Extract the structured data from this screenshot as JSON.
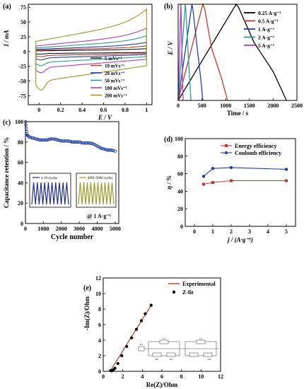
{
  "chart_data": [
    {
      "panel": "(a)",
      "type": "line",
      "xlabel": "E / V",
      "ylabel": "I / mA",
      "xlim": [
        -0.1,
        1.05
      ],
      "ylim": [
        -90,
        80
      ],
      "xticks": [
        "0",
        "0.2",
        "0.4",
        "0.6",
        "0.8",
        "1"
      ],
      "xtick_values": [
        0,
        0.2,
        0.4,
        0.6,
        0.8,
        1
      ],
      "yticks": [
        "75",
        "50",
        "25",
        "0",
        "-25",
        "-50",
        "-75"
      ],
      "ytick_values": [
        75,
        50,
        25,
        0,
        -25,
        -50,
        -75
      ],
      "legend_position": "bottom-right",
      "series": [
        {
          "name": "5 mVs⁻¹",
          "color": "#1a1a1a",
          "amp": 4
        },
        {
          "name": "10 mVs⁻¹",
          "color": "#c0392b",
          "amp": 8
        },
        {
          "name": "20 mVs⁻¹",
          "color": "#1f3fa8",
          "amp": 13
        },
        {
          "name": "50 mVs⁻¹",
          "color": "#2a9a9a",
          "amp": 22
        },
        {
          "name": "100 mVs⁻¹",
          "color": "#b13cc0",
          "amp": 33
        },
        {
          "name": "200 mVs⁻¹",
          "color": "#9a9a2a",
          "amp": 60
        }
      ]
    },
    {
      "panel": "(b)",
      "type": "line",
      "xlabel": "Time / s",
      "ylabel": "E / V",
      "xlim": [
        0,
        2500
      ],
      "ylim": [
        0,
        1
      ],
      "xticks": [
        "0",
        "500",
        "1000",
        "1500",
        "2000",
        "2500"
      ],
      "xtick_values": [
        0,
        500,
        1000,
        1500,
        2000,
        2500
      ],
      "legend_position": "top-right",
      "series": [
        {
          "name": "0.25 A·g⁻¹",
          "color": "#000000",
          "x": [
            0,
            1220,
            1270,
            1600,
            2000,
            2280
          ],
          "y": [
            0,
            1.0,
            0.97,
            0.6,
            0.3,
            0
          ]
        },
        {
          "name": "0.5 A·g⁻¹",
          "color": "#c0392b",
          "x": [
            0,
            520,
            560,
            700,
            900,
            1040
          ],
          "y": [
            0,
            1.0,
            0.95,
            0.55,
            0.25,
            0
          ]
        },
        {
          "name": "1 A·g⁻¹",
          "color": "#1f3fa8",
          "x": [
            0,
            290,
            310,
            400,
            480,
            520
          ],
          "y": [
            0,
            1.0,
            0.95,
            0.55,
            0.2,
            0
          ]
        },
        {
          "name": "2 A·g⁻¹",
          "color": "#2a9a9a",
          "x": [
            0,
            150,
            160,
            210,
            250,
            270
          ],
          "y": [
            0,
            1.0,
            0.95,
            0.5,
            0.15,
            0
          ]
        },
        {
          "name": "5 A·g⁻¹",
          "color": "#b13cc0",
          "x": [
            0,
            55,
            60,
            80,
            95,
            105
          ],
          "y": [
            0,
            1.0,
            0.95,
            0.5,
            0.15,
            0
          ]
        }
      ]
    },
    {
      "panel": "(c)",
      "type": "scatter",
      "xlabel": "Cycle number",
      "ylabel": "Capacitance retention / %",
      "xlim": [
        0,
        5200
      ],
      "ylim": [
        0,
        100
      ],
      "xticks": [
        "0",
        "1000",
        "2000",
        "3000",
        "4000",
        "5000"
      ],
      "xtick_values": [
        0,
        1000,
        2000,
        3000,
        4000,
        5000
      ],
      "yticks": [
        "0",
        "20",
        "40",
        "60",
        "80",
        "100"
      ],
      "ytick_values": [
        0,
        20,
        40,
        60,
        80,
        100
      ],
      "annotation": "@ 1 A·g⁻¹",
      "series": [
        {
          "name": "retention",
          "color": "#1f3fa8",
          "x": [
            0,
            100,
            200,
            400,
            600,
            800,
            1000,
            1200,
            1400,
            1600,
            1800,
            2000,
            2200,
            2400,
            2600,
            2800,
            3000,
            3200,
            3400,
            3600,
            3800,
            4000,
            4200,
            4400,
            4600,
            4800,
            5000
          ],
          "y": [
            100,
            87,
            85,
            84,
            83,
            82,
            82,
            82,
            83,
            83,
            82,
            81,
            81,
            81,
            80,
            80,
            80,
            79,
            79,
            79,
            78,
            76,
            74,
            73,
            72,
            72,
            71
          ]
        }
      ],
      "insets": [
        {
          "legend": "1-10 cycles",
          "color": "#1f2a8a",
          "cycles": 10
        },
        {
          "legend": "4991-5000 cycles",
          "color": "#9a9a2a",
          "cycles": 10
        }
      ]
    },
    {
      "panel": "(d)",
      "type": "line",
      "xlabel": "j / (A·g⁻¹)",
      "ylabel": "η / %",
      "xlim": [
        -0.5,
        5.5
      ],
      "ylim": [
        0,
        100
      ],
      "xticks": [
        "0",
        "1",
        "2",
        "3",
        "4",
        "5"
      ],
      "xtick_values": [
        0,
        1,
        2,
        3,
        4,
        5
      ],
      "yticks": [
        "0",
        "20",
        "40",
        "60",
        "80",
        "100"
      ],
      "ytick_values": [
        0,
        20,
        40,
        60,
        80,
        100
      ],
      "legend_position": "top-right",
      "series": [
        {
          "name": "Energy efficiency",
          "color": "#c0392b",
          "marker": "square",
          "x": [
            0.5,
            1,
            2,
            5
          ],
          "y": [
            48,
            50,
            52,
            52
          ]
        },
        {
          "name": "Coulomb efficiency",
          "color": "#1f3fa8",
          "marker": "circle",
          "x": [
            0.5,
            1,
            2,
            5
          ],
          "y": [
            57,
            66,
            67,
            65
          ]
        }
      ]
    },
    {
      "panel": "(e)",
      "type": "scatter",
      "xlabel": "Re(Z)/Ohm",
      "ylabel": "-Im(Z)/Ohm",
      "xlim": [
        0,
        12
      ],
      "ylim": [
        0,
        12
      ],
      "xticks": [
        "0",
        "2",
        "4",
        "6",
        "8",
        "10",
        "12"
      ],
      "xtick_values": [
        0,
        2,
        4,
        6,
        8,
        10,
        12
      ],
      "yticks": [
        "0",
        "2",
        "4",
        "6",
        "8",
        "10",
        "12"
      ],
      "ytick_values": [
        0,
        2,
        4,
        6,
        8,
        10,
        12
      ],
      "legend_position": "top-right",
      "series": [
        {
          "name": "Experimental",
          "color": "#c0392b",
          "x": [
            0.7,
            4.9
          ],
          "y": [
            0.0,
            8.5
          ]
        },
        {
          "name": "Z-fit",
          "color": "#000000",
          "x": [
            0.75,
            0.85,
            0.95,
            1.05,
            1.2,
            1.5,
            1.9,
            2.4,
            2.9,
            3.4,
            3.9,
            4.3,
            4.9
          ],
          "y": [
            0.1,
            0.05,
            0.1,
            0.2,
            0.4,
            1.0,
            2.0,
            3.2,
            4.3,
            5.4,
            6.5,
            7.4,
            8.5
          ]
        }
      ],
      "circuit_labels": [
        "R1",
        "C1",
        "R2",
        "W1",
        "C2",
        "W2"
      ]
    }
  ],
  "panels": {
    "a": "(a)",
    "b": "(b)",
    "c": "(c)",
    "d": "(d)",
    "e": "(e)"
  }
}
